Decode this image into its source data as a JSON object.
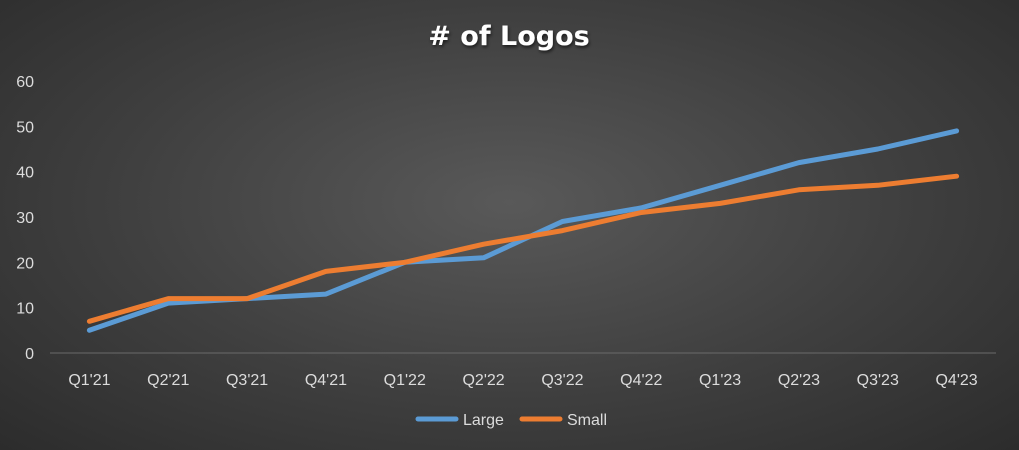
{
  "chart_data": {
    "type": "line",
    "title": "# of Logos",
    "xlabel": "",
    "ylabel": "",
    "ylim": [
      0,
      60
    ],
    "yticks": [
      "0",
      "10",
      "20",
      "30",
      "40",
      "50",
      "60"
    ],
    "grid": false,
    "legend_position": "bottom",
    "categories": [
      "Q1'21",
      "Q2'21",
      "Q3'21",
      "Q4'21",
      "Q1'22",
      "Q2'22",
      "Q3'22",
      "Q4'22",
      "Q1'23",
      "Q2'23",
      "Q3'23",
      "Q4'23"
    ],
    "series": [
      {
        "name": "Large",
        "color": "#5b9bd5",
        "values": [
          5,
          11,
          12,
          13,
          20,
          21,
          29,
          32,
          37,
          42,
          45,
          49
        ]
      },
      {
        "name": "Small",
        "color": "#ed7d31",
        "values": [
          7,
          12,
          12,
          18,
          20,
          24,
          27,
          31,
          33,
          36,
          37,
          39
        ]
      }
    ]
  }
}
